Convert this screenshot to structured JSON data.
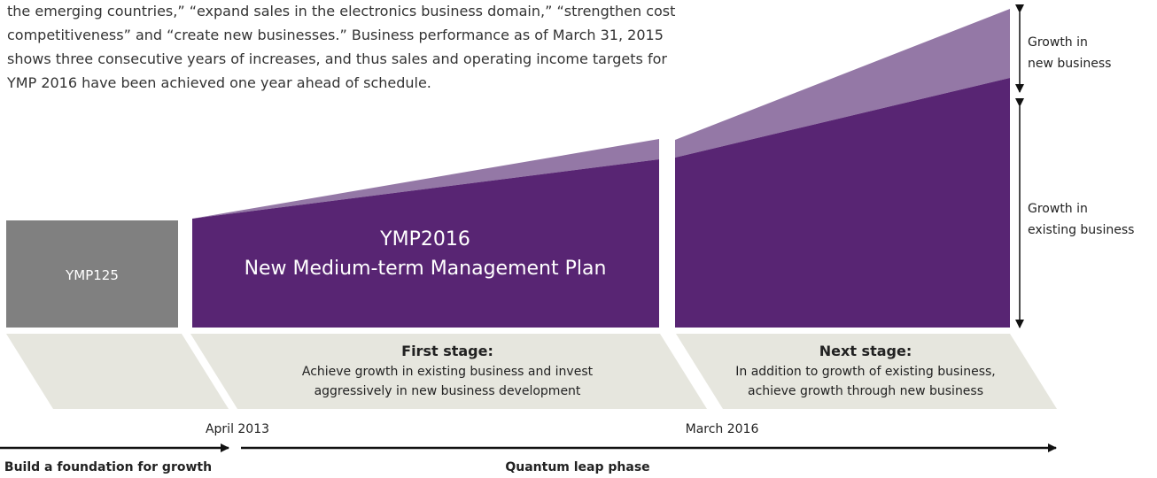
{
  "paragraph": [
    "the emerging countries,” “expand sales in the electronics business domain,” “strengthen cost",
    "competitiveness” and “create new businesses.” Business performance as of March 31, 2015",
    "shows three consecutive years of increases, and thus sales and operating income targets for",
    "YMP 2016 have been achieved one year ahead of schedule."
  ],
  "right_labels": {
    "new_business": [
      "Growth in",
      "new business"
    ],
    "existing_business": [
      "Growth in",
      "existing business"
    ]
  },
  "blocks": {
    "ymp125": "YMP125",
    "ymp2016": {
      "title": "YMP2016",
      "subtitle": "New Medium-term Management Plan"
    }
  },
  "stages": [
    {
      "heading": "First stage:",
      "lines": [
        "Achieve growth in existing business and invest",
        "aggressively in new business development"
      ]
    },
    {
      "heading": "Next stage:",
      "lines": [
        "In addition to growth of existing business,",
        "achieve growth through new business"
      ]
    }
  ],
  "dates": [
    "April 2013",
    "March 2016"
  ],
  "phases": [
    "Build a foundation for growth",
    "Quantum leap phase"
  ]
}
